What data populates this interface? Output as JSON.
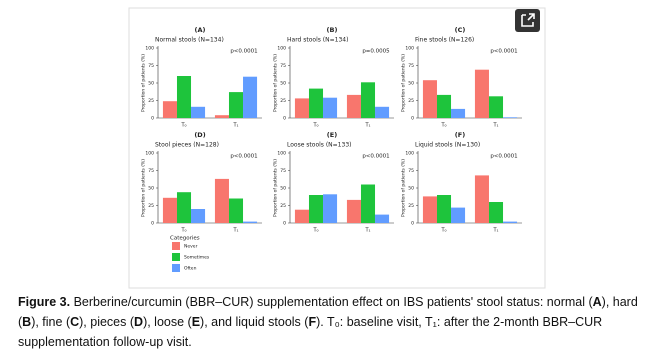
{
  "chart_data": [
    {
      "type": "bar",
      "letter": "(A)",
      "title": "Normal stools (N=134)",
      "p_value": "p<0.0001",
      "y_label": "Proportion of patients (%)",
      "categories": [
        "T₀",
        "T₁"
      ],
      "ylim": [
        0,
        100
      ],
      "yticks": [
        0,
        25,
        50,
        75,
        100
      ],
      "series": [
        {
          "name": "Never",
          "color": "#f8766d",
          "values": [
            24,
            4
          ]
        },
        {
          "name": "Sometimes",
          "color": "#1ec43c",
          "values": [
            60,
            37
          ]
        },
        {
          "name": "Often",
          "color": "#619cff",
          "values": [
            16,
            59
          ]
        }
      ]
    },
    {
      "type": "bar",
      "letter": "(B)",
      "title": "Hard stools (N=134)",
      "p_value": "p=0.0005",
      "y_label": "Proportion of patients (%)",
      "categories": [
        "T₀",
        "T₁"
      ],
      "ylim": [
        0,
        100
      ],
      "yticks": [
        0,
        25,
        50,
        75,
        100
      ],
      "series": [
        {
          "name": "Never",
          "color": "#f8766d",
          "values": [
            28,
            33
          ]
        },
        {
          "name": "Sometimes",
          "color": "#1ec43c",
          "values": [
            42,
            51
          ]
        },
        {
          "name": "Often",
          "color": "#619cff",
          "values": [
            29,
            16
          ]
        }
      ]
    },
    {
      "type": "bar",
      "letter": "(C)",
      "title": "Fine stools (N=126)",
      "p_value": "p<0.0001",
      "y_label": "Proportion of patients (%)",
      "categories": [
        "T₀",
        "T₁"
      ],
      "ylim": [
        0,
        100
      ],
      "yticks": [
        0,
        25,
        50,
        75,
        100
      ],
      "series": [
        {
          "name": "Never",
          "color": "#f8766d",
          "values": [
            54,
            69
          ]
        },
        {
          "name": "Sometimes",
          "color": "#1ec43c",
          "values": [
            33,
            31
          ]
        },
        {
          "name": "Often",
          "color": "#619cff",
          "values": [
            13,
            1
          ]
        }
      ]
    },
    {
      "type": "bar",
      "letter": "(D)",
      "title": "Stool pieces (N=128)",
      "p_value": "p<0.0001",
      "y_label": "Proportion of patients (%)",
      "categories": [
        "T₀",
        "T₁"
      ],
      "ylim": [
        0,
        100
      ],
      "yticks": [
        0,
        25,
        50,
        75,
        100
      ],
      "series": [
        {
          "name": "Never",
          "color": "#f8766d",
          "values": [
            36,
            63
          ]
        },
        {
          "name": "Sometimes",
          "color": "#1ec43c",
          "values": [
            44,
            35
          ]
        },
        {
          "name": "Often",
          "color": "#619cff",
          "values": [
            20,
            2
          ]
        }
      ]
    },
    {
      "type": "bar",
      "letter": "(E)",
      "title": "Loose stools (N=133)",
      "p_value": "p<0.0001",
      "y_label": "Proportion of patients (%)",
      "categories": [
        "T₀",
        "T₁"
      ],
      "ylim": [
        0,
        100
      ],
      "yticks": [
        0,
        25,
        50,
        75,
        100
      ],
      "series": [
        {
          "name": "Never",
          "color": "#f8766d",
          "values": [
            19,
            33
          ]
        },
        {
          "name": "Sometimes",
          "color": "#1ec43c",
          "values": [
            40,
            55
          ]
        },
        {
          "name": "Often",
          "color": "#619cff",
          "values": [
            41,
            12
          ]
        }
      ]
    },
    {
      "type": "bar",
      "letter": "(F)",
      "title": "Liquid stools (N=130)",
      "p_value": "p<0.0001",
      "y_label": "Proportion of patients (%)",
      "categories": [
        "T₀",
        "T₁"
      ],
      "ylim": [
        0,
        100
      ],
      "yticks": [
        0,
        25,
        50,
        75,
        100
      ],
      "series": [
        {
          "name": "Never",
          "color": "#f8766d",
          "values": [
            38,
            68
          ]
        },
        {
          "name": "Sometimes",
          "color": "#1ec43c",
          "values": [
            40,
            30
          ]
        },
        {
          "name": "Often",
          "color": "#619cff",
          "values": [
            22,
            2
          ]
        }
      ]
    }
  ],
  "legend_title": "Categories",
  "caption": [
    {
      "text": "Figure 3.",
      "bold": true
    },
    {
      "text": " Berberine/curcumin (BBR–CUR) supplementation effect on IBS patients' stool status: normal (",
      "bold": false
    },
    {
      "text": "A",
      "bold": true
    },
    {
      "text": "), hard (",
      "bold": false
    },
    {
      "text": "B",
      "bold": true
    },
    {
      "text": "), fine (",
      "bold": false
    },
    {
      "text": "C",
      "bold": true
    },
    {
      "text": "), pieces (",
      "bold": false
    },
    {
      "text": "D",
      "bold": true
    },
    {
      "text": "), loose (",
      "bold": false
    },
    {
      "text": "E",
      "bold": true
    },
    {
      "text": "), and liquid stools (",
      "bold": false
    },
    {
      "text": "F",
      "bold": true
    },
    {
      "text": "). T₀: baseline visit, T₁: after the 2-month BBR–CUR supplementation follow-up visit.",
      "bold": false
    }
  ]
}
